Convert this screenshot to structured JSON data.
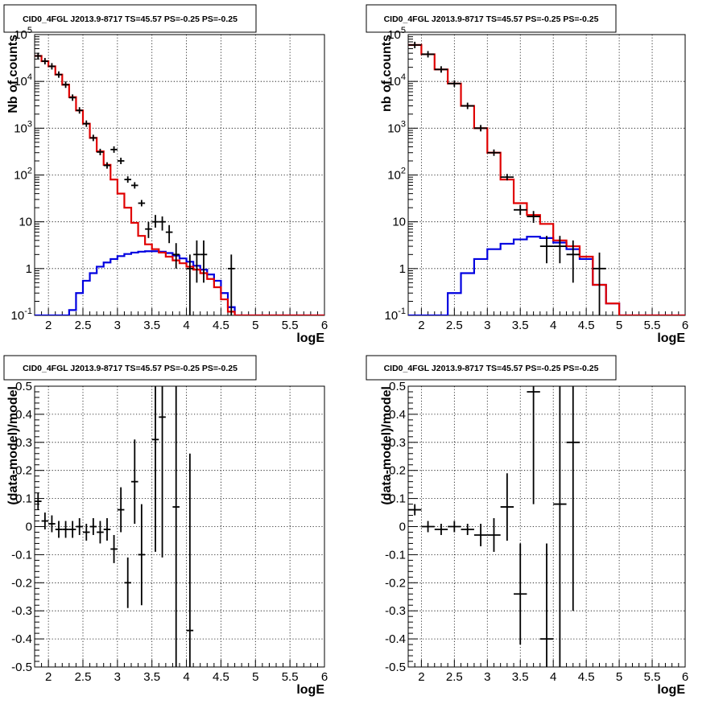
{
  "chart_data": [
    {
      "type": "step",
      "title": "CID0_4FGL J2013.9-8717 TS=45.57 PS=-0.25 PS=-0.25",
      "xlabel": "logE",
      "ylabel": "Nb of counts",
      "yscale": "log",
      "xlim": [
        1.8,
        6.0
      ],
      "ylim": [
        0.1,
        100000
      ],
      "xticks": [
        "2",
        "2.5",
        "3",
        "3.5",
        "4",
        "4.5",
        "5",
        "5.5",
        "6"
      ],
      "yticks": [
        "10^-1",
        "1",
        "10",
        "10^2",
        "10^3",
        "10^4",
        "10^5"
      ],
      "grid": true,
      "bin_width": 0.1,
      "bin_low_edges": [
        1.8,
        1.9,
        2.0,
        2.1,
        2.2,
        2.3,
        2.4,
        2.5,
        2.6,
        2.7,
        2.8,
        2.9,
        3.0,
        3.1,
        3.2,
        3.3,
        3.4,
        3.5,
        3.6,
        3.7,
        3.8,
        3.9,
        4.0,
        4.1,
        4.2,
        4.3,
        4.4,
        4.5,
        4.6,
        4.7,
        4.8,
        4.9,
        5.0,
        5.1,
        5.2,
        5.3,
        5.4,
        5.5,
        5.6,
        5.7,
        5.8,
        5.9
      ],
      "series": [
        {
          "color": "#e00000",
          "values": [
            35000,
            27000,
            21000,
            14000,
            8500,
            4600,
            2400,
            1250,
            620,
            320,
            165,
            80,
            40,
            20,
            9.5,
            5,
            3.3,
            2.6,
            2.2,
            1.8,
            1.5,
            1.3,
            1.1,
            0.95,
            0.8,
            0.6,
            0.4,
            0.22,
            0.12,
            0.1,
            0.1,
            0.1,
            0.1,
            0.1,
            0.1,
            0.1,
            0.1,
            0.1,
            0.1,
            0.1,
            0.1,
            0.1
          ]
        },
        {
          "color": "#0000e0",
          "values": [
            0.1,
            0.1,
            0.1,
            0.1,
            0.1,
            0.13,
            0.3,
            0.55,
            0.8,
            1.1,
            1.35,
            1.6,
            1.85,
            2.05,
            2.2,
            2.3,
            2.35,
            2.35,
            2.3,
            2.15,
            1.9,
            1.65,
            1.4,
            1.15,
            0.95,
            0.75,
            0.55,
            0.3,
            0.15,
            0.1,
            0.1,
            0.1,
            0.1,
            0.1,
            0.1,
            0.1,
            0.1,
            0.1,
            0.1,
            0.1,
            0.1,
            0.1
          ]
        }
      ],
      "points": [
        {
          "x": 1.85,
          "y": 35000
        },
        {
          "x": 1.95,
          "y": 27000
        },
        {
          "x": 2.05,
          "y": 21000
        },
        {
          "x": 2.15,
          "y": 14000
        },
        {
          "x": 2.25,
          "y": 8500
        },
        {
          "x": 2.35,
          "y": 4500
        },
        {
          "x": 2.45,
          "y": 2400
        },
        {
          "x": 2.55,
          "y": 1250
        },
        {
          "x": 2.65,
          "y": 620
        },
        {
          "x": 2.75,
          "y": 310
        },
        {
          "x": 2.85,
          "y": 160
        },
        {
          "x": 2.95,
          "y": 350
        },
        {
          "x": 3.05,
          "y": 200
        },
        {
          "x": 3.15,
          "y": 80
        },
        {
          "x": 3.25,
          "y": 60
        },
        {
          "x": 3.35,
          "y": 25
        },
        {
          "x": 3.45,
          "y": 7,
          "lo": 4.5,
          "hi": 10
        },
        {
          "x": 3.55,
          "y": 10,
          "lo": 7.5,
          "hi": 14
        },
        {
          "x": 3.65,
          "y": 10,
          "lo": 6.5,
          "hi": 13
        },
        {
          "x": 3.75,
          "y": 6,
          "lo": 3.5,
          "hi": 8.5
        },
        {
          "x": 3.85,
          "y": 2,
          "lo": 1,
          "hi": 3.5
        },
        {
          "x": 4.05,
          "y": 1,
          "lo": 0.1,
          "hi": 2
        },
        {
          "x": 4.15,
          "y": 2,
          "lo": 0.5,
          "hi": 4
        },
        {
          "x": 4.25,
          "y": 2,
          "lo": 0.5,
          "hi": 4
        },
        {
          "x": 4.65,
          "y": 1,
          "lo": 0.1,
          "hi": 2
        }
      ]
    },
    {
      "type": "step",
      "title": "CID0_4FGL J2013.9-8717 TS=45.57 PS=-0.25 PS=-0.25",
      "xlabel": "logE",
      "ylabel": "nb of counts",
      "yscale": "log",
      "xlim": [
        1.8,
        6.0
      ],
      "ylim": [
        0.1,
        100000
      ],
      "xticks": [
        "2",
        "2.5",
        "3",
        "3.5",
        "4",
        "4.5",
        "5",
        "5.5",
        "6"
      ],
      "yticks": [
        "10^-1",
        "1",
        "10",
        "10^2",
        "10^3",
        "10^4",
        "10^5"
      ],
      "grid": true,
      "bin_width": 0.2,
      "bin_low_edges": [
        1.8,
        2.0,
        2.2,
        2.4,
        2.6,
        2.8,
        3.0,
        3.2,
        3.4,
        3.6,
        3.8,
        4.0,
        4.2,
        4.4,
        4.6,
        4.8,
        5.0,
        5.2,
        5.4,
        5.6,
        5.8
      ],
      "series": [
        {
          "color": "#e00000",
          "values": [
            60000,
            38000,
            18000,
            9000,
            3000,
            1000,
            300,
            80,
            25,
            14,
            9,
            4,
            3,
            1.8,
            0.45,
            0.18,
            0.1,
            0.1,
            0.1,
            0.1,
            0.1
          ]
        },
        {
          "color": "#0000e0",
          "values": [
            0.1,
            0.1,
            0.1,
            0.3,
            0.8,
            1.6,
            2.6,
            3.4,
            4.2,
            4.8,
            4.5,
            3.6,
            2.6,
            1.6,
            0.45,
            0.18,
            0.1,
            0.1,
            0.1,
            0.1,
            0.1
          ]
        }
      ],
      "points": [
        {
          "x": 1.9,
          "y": 60000
        },
        {
          "x": 2.1,
          "y": 38000
        },
        {
          "x": 2.3,
          "y": 18000
        },
        {
          "x": 2.5,
          "y": 9000
        },
        {
          "x": 2.7,
          "y": 3000
        },
        {
          "x": 2.9,
          "y": 1000
        },
        {
          "x": 3.1,
          "y": 300
        },
        {
          "x": 3.3,
          "y": 90
        },
        {
          "x": 3.5,
          "y": 18,
          "lo": 14,
          "hi": 23
        },
        {
          "x": 3.7,
          "y": 13,
          "lo": 9.5,
          "hi": 17
        },
        {
          "x": 3.9,
          "y": 3,
          "lo": 1.3,
          "hi": 5
        },
        {
          "x": 4.1,
          "y": 3,
          "lo": 1.3,
          "hi": 5
        },
        {
          "x": 4.3,
          "y": 2,
          "lo": 0.5,
          "hi": 4
        },
        {
          "x": 4.7,
          "y": 1,
          "lo": 0.1,
          "hi": 2.2
        }
      ]
    },
    {
      "type": "errorbar",
      "title": "CID0_4FGL J2013.9-8717 TS=45.57 PS=-0.25 PS=-0.25",
      "xlabel": "logE",
      "ylabel": "(data-model)/model",
      "xlim": [
        1.8,
        6.0
      ],
      "ylim": [
        -0.5,
        0.5
      ],
      "xticks": [
        "2",
        "2.5",
        "3",
        "3.5",
        "4",
        "4.5",
        "5",
        "5.5",
        "6"
      ],
      "yticks": [
        "-0.5",
        "-0.4",
        "-0.3",
        "-0.2",
        "-0.1",
        "0",
        "0.1",
        "0.2",
        "0.3",
        "0.4",
        "0.5"
      ],
      "grid": true,
      "xerr": 0.05,
      "points": [
        {
          "x": 1.85,
          "y": 0.09,
          "e": 0.03
        },
        {
          "x": 1.95,
          "y": 0.02,
          "e": 0.03
        },
        {
          "x": 2.05,
          "y": 0.01,
          "e": 0.03
        },
        {
          "x": 2.15,
          "y": -0.01,
          "e": 0.03
        },
        {
          "x": 2.25,
          "y": -0.01,
          "e": 0.03
        },
        {
          "x": 2.35,
          "y": -0.01,
          "e": 0.03
        },
        {
          "x": 2.45,
          "y": 0.0,
          "e": 0.03
        },
        {
          "x": 2.55,
          "y": -0.02,
          "e": 0.03
        },
        {
          "x": 2.65,
          "y": 0.0,
          "e": 0.03
        },
        {
          "x": 2.75,
          "y": -0.02,
          "e": 0.04
        },
        {
          "x": 2.85,
          "y": -0.01,
          "e": 0.04
        },
        {
          "x": 2.95,
          "y": -0.08,
          "e": 0.05
        },
        {
          "x": 3.05,
          "y": 0.06,
          "e": 0.08
        },
        {
          "x": 3.15,
          "y": -0.2,
          "e": 0.09
        },
        {
          "x": 3.25,
          "y": 0.16,
          "e": 0.15
        },
        {
          "x": 3.35,
          "y": -0.1,
          "e": 0.18
        },
        {
          "x": 3.55,
          "y": 0.31,
          "e": 0.4
        },
        {
          "x": 3.65,
          "y": 0.39,
          "e": 0.5
        },
        {
          "x": 3.85,
          "y": 0.07,
          "e": 0.9
        },
        {
          "x": 4.05,
          "y": -0.37,
          "e": 0.63
        }
      ]
    },
    {
      "type": "errorbar",
      "title": "CID0_4FGL J2013.9-8717 TS=45.57 PS=-0.25 PS=-0.25",
      "xlabel": "logE",
      "ylabel": "(data-model)/model",
      "xlim": [
        1.8,
        6.0
      ],
      "ylim": [
        -0.5,
        0.5
      ],
      "xticks": [
        "2",
        "2.5",
        "3",
        "3.5",
        "4",
        "4.5",
        "5",
        "5.5",
        "6"
      ],
      "yticks": [
        "-0.5",
        "-0.4",
        "-0.3",
        "-0.2",
        "-0.1",
        "0",
        "0.1",
        "0.2",
        "0.3",
        "0.4",
        "0.5"
      ],
      "grid": true,
      "xerr": 0.1,
      "points": [
        {
          "x": 1.9,
          "y": 0.06,
          "e": 0.02
        },
        {
          "x": 2.1,
          "y": 0.0,
          "e": 0.02
        },
        {
          "x": 2.3,
          "y": -0.01,
          "e": 0.02
        },
        {
          "x": 2.5,
          "y": 0.0,
          "e": 0.02
        },
        {
          "x": 2.7,
          "y": -0.01,
          "e": 0.02
        },
        {
          "x": 2.9,
          "y": -0.03,
          "e": 0.04
        },
        {
          "x": 3.1,
          "y": -0.03,
          "e": 0.06
        },
        {
          "x": 3.3,
          "y": 0.07,
          "e": 0.12
        },
        {
          "x": 3.5,
          "y": -0.24,
          "e": 0.18
        },
        {
          "x": 3.7,
          "y": 0.48,
          "e": 0.4
        },
        {
          "x": 3.9,
          "y": -0.4,
          "e": 0.34
        },
        {
          "x": 4.1,
          "y": 0.08,
          "e": 0.6
        },
        {
          "x": 4.3,
          "y": 0.3,
          "e": 0.6
        }
      ]
    }
  ]
}
